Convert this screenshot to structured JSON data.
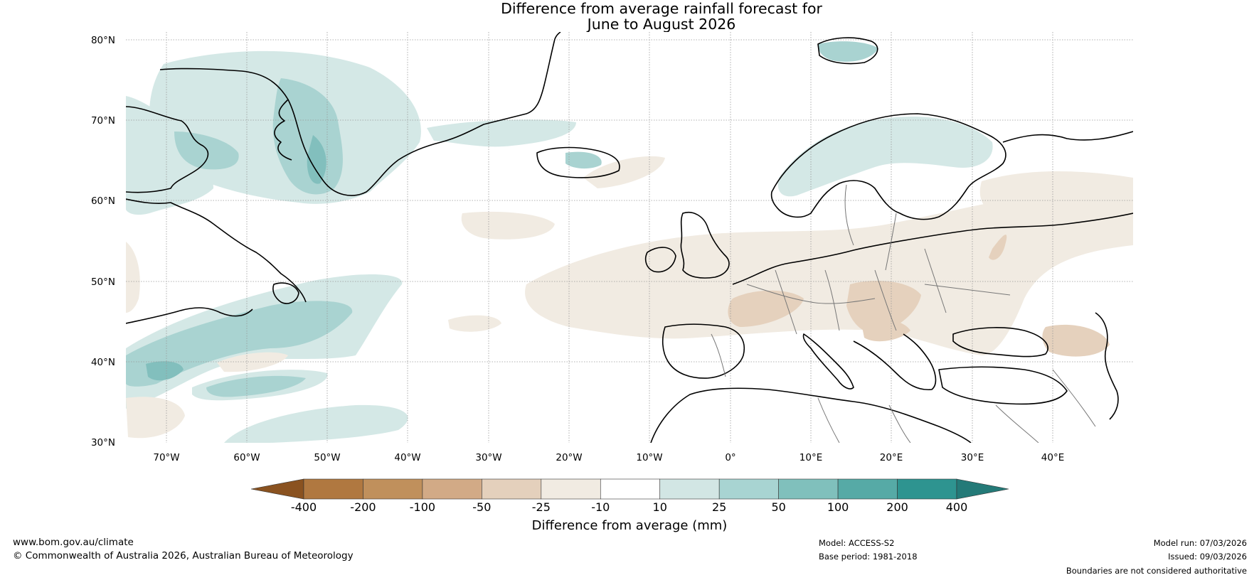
{
  "title_line1": "Difference from average rainfall forecast for",
  "title_line2": "June to August 2026",
  "latitude_labels": [
    "80°N",
    "70°N",
    "60°N",
    "50°N",
    "40°N",
    "30°N"
  ],
  "longitude_labels": [
    "70°W",
    "60°W",
    "50°W",
    "40°W",
    "30°W",
    "20°W",
    "10°W",
    "0°",
    "10°E",
    "20°E",
    "30°E",
    "40°E"
  ],
  "colorbar": {
    "label": "Difference from average (mm)",
    "ticks": [
      "-400",
      "-200",
      "-100",
      "-50",
      "-25",
      "-10",
      "10",
      "25",
      "50",
      "100",
      "200",
      "400"
    ],
    "colors": [
      "#8a5220",
      "#b07840",
      "#c0905c",
      "#d2aa86",
      "#e4d0bc",
      "#f1ebe2",
      "#ffffff",
      "#d2e6e4",
      "#a8d4d2",
      "#80c0bc",
      "#56aaa6",
      "#2e9490",
      "#247a78"
    ]
  },
  "footer": {
    "website": "www.bom.gov.au/climate",
    "copyright": "© Commonwealth of Australia 2026, Australian Bureau of Meteorology",
    "model": "Model: ACCESS-S2",
    "base_period": "Base period: 1981-2018",
    "model_run": "Model run: 07/03/2026",
    "issued": "Issued: 09/03/2026",
    "disclaimer": "Boundaries are not considered authoritative"
  }
}
